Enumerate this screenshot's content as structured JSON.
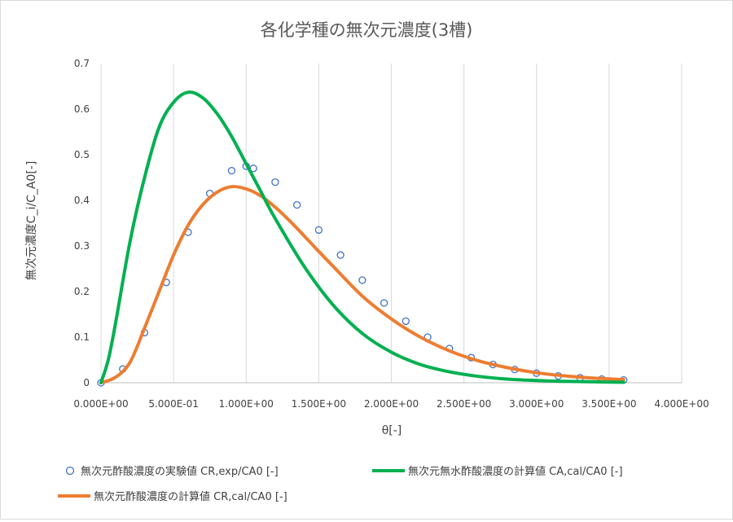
{
  "chart_data": {
    "type": "scatter",
    "title": "各化学種の無次元濃度(3槽)",
    "xlabel": "θ[-]",
    "ylabel": "無次元濃度C_i/C_A0[-]",
    "xlim": [
      0,
      4
    ],
    "ylim": [
      0,
      0.7
    ],
    "xticks": [
      0,
      0.5,
      1.0,
      1.5,
      2.0,
      2.5,
      3.0,
      3.5,
      4.0
    ],
    "xtick_labels": [
      "0.000E+00",
      "5.000E-01",
      "1.000E+00",
      "1.500E+00",
      "2.000E+00",
      "2.500E+00",
      "3.000E+00",
      "3.500E+00",
      "4.000E+00"
    ],
    "yticks": [
      0,
      0.1,
      0.2,
      0.3,
      0.4,
      0.5,
      0.6,
      0.7
    ],
    "ytick_labels": [
      "0",
      "0.1",
      "0.2",
      "0.3",
      "0.4",
      "0.5",
      "0.6",
      "0.7"
    ],
    "grid": "vertical",
    "legend_position": "bottom",
    "series": [
      {
        "name": "無次元酢酸濃度の実験値 CR,exp/CA0 [-]",
        "kind": "markers",
        "color": "#4472c4",
        "x": [
          0,
          0.15,
          0.3,
          0.45,
          0.6,
          0.75,
          0.9,
          1.0,
          1.05,
          1.2,
          1.35,
          1.5,
          1.65,
          1.8,
          1.95,
          2.1,
          2.25,
          2.4,
          2.55,
          2.7,
          2.85,
          3.0,
          3.15,
          3.3,
          3.45,
          3.6
        ],
        "y": [
          0,
          0.03,
          0.11,
          0.22,
          0.33,
          0.415,
          0.465,
          0.475,
          0.47,
          0.44,
          0.39,
          0.335,
          0.28,
          0.225,
          0.175,
          0.135,
          0.1,
          0.075,
          0.055,
          0.04,
          0.029,
          0.021,
          0.015,
          0.011,
          0.008,
          0.006
        ]
      },
      {
        "name": "無次元無水酢酸濃度の計算値 CA,cal/CA0 [-]",
        "kind": "line",
        "color": "#00b050",
        "x": [
          0,
          0.05,
          0.1,
          0.2,
          0.3,
          0.4,
          0.5,
          0.6,
          0.7,
          0.8,
          0.9,
          1.0,
          1.1,
          1.2,
          1.4,
          1.6,
          1.8,
          2.0,
          2.2,
          2.4,
          2.6,
          2.8,
          3.0,
          3.2,
          3.4,
          3.6
        ],
        "y": [
          0,
          0.05,
          0.13,
          0.31,
          0.45,
          0.56,
          0.615,
          0.637,
          0.625,
          0.59,
          0.54,
          0.48,
          0.42,
          0.36,
          0.255,
          0.17,
          0.108,
          0.067,
          0.04,
          0.024,
          0.014,
          0.008,
          0.005,
          0.003,
          0.002,
          0.001
        ]
      },
      {
        "name": "無次元酢酸濃度の計算値 CR,cal/CA0 [-]",
        "kind": "line",
        "color": "#ed7d31",
        "x": [
          0,
          0.1,
          0.2,
          0.3,
          0.4,
          0.5,
          0.6,
          0.7,
          0.8,
          0.9,
          1.0,
          1.1,
          1.2,
          1.3,
          1.4,
          1.5,
          1.6,
          1.8,
          2.0,
          2.2,
          2.4,
          2.6,
          2.8,
          3.0,
          3.2,
          3.4,
          3.6
        ],
        "y": [
          0,
          0.012,
          0.045,
          0.12,
          0.2,
          0.28,
          0.345,
          0.39,
          0.418,
          0.43,
          0.425,
          0.41,
          0.385,
          0.355,
          0.322,
          0.288,
          0.255,
          0.19,
          0.14,
          0.1,
          0.07,
          0.048,
          0.033,
          0.022,
          0.015,
          0.01,
          0.007
        ]
      }
    ]
  }
}
